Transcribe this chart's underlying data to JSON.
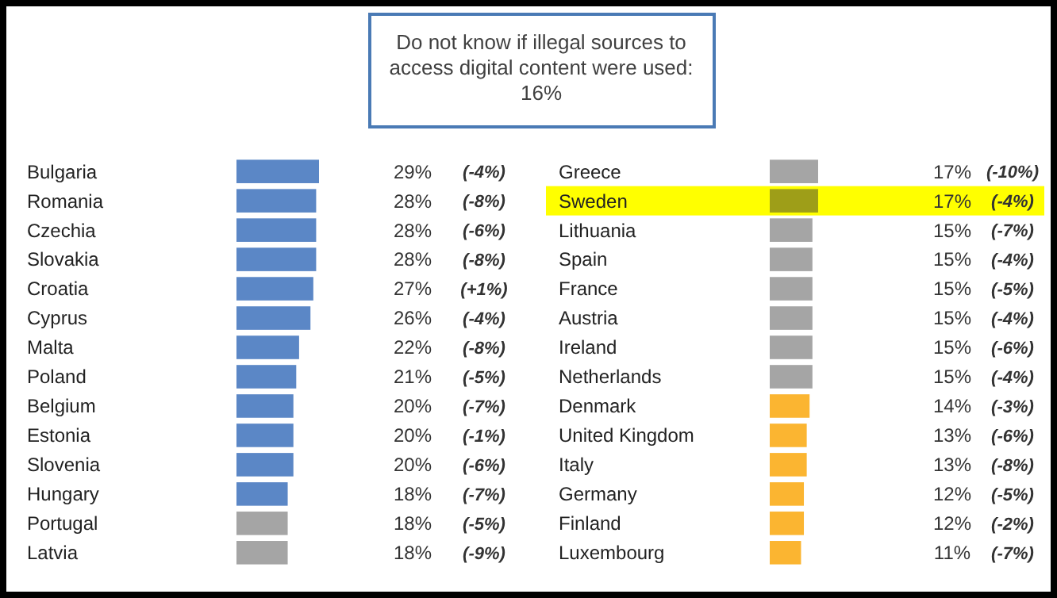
{
  "chart_data": [
    {
      "type": "other",
      "title": "Do not know if illegal sources to\naccess digital content were used:\n16%"
    },
    {
      "type": "bar",
      "orientation": "horizontal",
      "categories": [
        "Bulgaria",
        "Romania",
        "Czechia",
        "Slovakia",
        "Croatia",
        "Cyprus",
        "Malta",
        "Poland",
        "Belgium",
        "Estonia",
        "Slovenia",
        "Hungary",
        "Portugal",
        "Latvia"
      ],
      "values": [
        29,
        28,
        28,
        28,
        27,
        26,
        22,
        21,
        20,
        20,
        20,
        18,
        18,
        18
      ],
      "value_labels": [
        "29%",
        "28%",
        "28%",
        "28%",
        "27%",
        "26%",
        "22%",
        "21%",
        "20%",
        "20%",
        "20%",
        "18%",
        "18%",
        "18%"
      ],
      "colors": [
        "#5b87c6",
        "#5b87c6",
        "#5b87c6",
        "#5b87c6",
        "#5b87c6",
        "#5b87c6",
        "#5b87c6",
        "#5b87c6",
        "#5b87c6",
        "#5b87c6",
        "#5b87c6",
        "#5b87c6",
        "#a5a5a5",
        "#a5a5a5"
      ],
      "annotations": [
        "(-4%)",
        "(-8%)",
        "(-6%)",
        "(-8%)",
        "(+1%)",
        "(-4%)",
        "(-8%)",
        "(-5%)",
        "(-7%)",
        "(-1%)",
        "(-6%)",
        "(-7%)",
        "(-5%)",
        "(-9%)"
      ]
    },
    {
      "type": "bar",
      "orientation": "horizontal",
      "categories": [
        "Greece",
        "Sweden",
        "Lithuania",
        "Spain",
        "France",
        "Austria",
        "Ireland",
        "Netherlands",
        "Denmark",
        "United Kingdom",
        "Italy",
        "Germany",
        "Finland",
        "Luxembourg"
      ],
      "values": [
        17,
        17,
        15,
        15,
        15,
        15,
        15,
        15,
        14,
        13,
        13,
        12,
        12,
        11
      ],
      "value_labels": [
        "17%",
        "17%",
        "15%",
        "15%",
        "15%",
        "15%",
        "15%",
        "15%",
        "14%",
        "13%",
        "13%",
        "12%",
        "12%",
        "11%"
      ],
      "colors": [
        "#a5a5a5",
        "#9e9e18",
        "#a5a5a5",
        "#a5a5a5",
        "#a5a5a5",
        "#a5a5a5",
        "#a5a5a5",
        "#a5a5a5",
        "#fbb531",
        "#fbb531",
        "#fbb531",
        "#fbb531",
        "#fbb531",
        "#fbb531"
      ],
      "bands": [
        {
          "axis": "y",
          "from": "Sweden",
          "to": "Sweden",
          "color": "#ffff00"
        }
      ],
      "annotations": [
        "(-10%)",
        "(-4%)",
        "(-7%)",
        "(-4%)",
        "(-5%)",
        "(-4%)",
        "(-6%)",
        "(-4%)",
        "(-3%)",
        "(-6%)",
        "(-8%)",
        "(-5%)",
        "(-2%)",
        "(-7%)"
      ]
    }
  ]
}
